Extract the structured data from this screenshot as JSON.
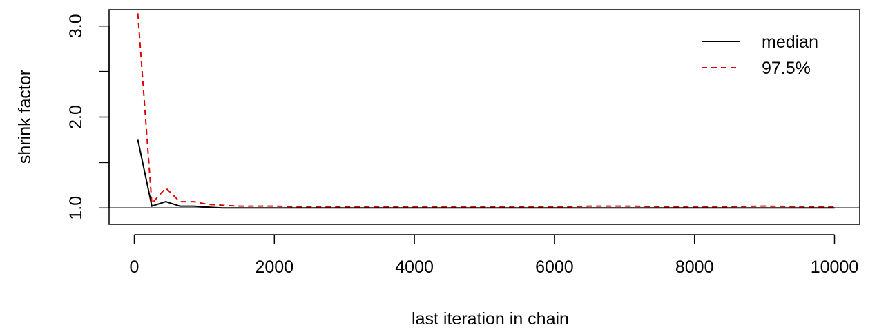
{
  "chart_data": {
    "type": "line",
    "title": "",
    "xlabel": "last iteration in chain",
    "ylabel": "shrink factor",
    "xlim": [
      -360,
      10360
    ],
    "ylim": [
      0.82,
      3.18
    ],
    "xticks": [
      0,
      2000,
      4000,
      6000,
      8000,
      10000
    ],
    "xtick_labels": [
      "0",
      "2000",
      "4000",
      "6000",
      "8000",
      "10000"
    ],
    "yticks": [
      1.0,
      1.5,
      2.0,
      2.5,
      3.0
    ],
    "ytick_labels": [
      "1.0",
      "",
      "2.0",
      "",
      "3.0"
    ],
    "reference_line": 1.0,
    "legend": {
      "position": "top-right",
      "entries": [
        "median",
        "97.5%"
      ]
    },
    "series": [
      {
        "name": "median",
        "color": "#000000",
        "dash": "solid",
        "x": [
          50,
          250,
          450,
          650,
          850,
          1050,
          1250,
          1500,
          2000,
          2500,
          3000,
          4000,
          5000,
          6000,
          7000,
          8000,
          9000,
          10000
        ],
        "y": [
          1.75,
          1.02,
          1.07,
          1.02,
          1.02,
          1.01,
          1.0,
          1.0,
          1.0,
          1.0,
          1.0,
          1.0,
          1.0,
          1.0,
          1.0,
          1.0,
          1.0,
          1.0
        ]
      },
      {
        "name": "97.5%",
        "color": "#df0000",
        "dash": "dashed",
        "x": [
          50,
          250,
          450,
          650,
          850,
          1050,
          1250,
          1500,
          2000,
          2500,
          3000,
          4000,
          5000,
          6000,
          6500,
          7000,
          8000,
          9000,
          10000
        ],
        "y": [
          3.14,
          1.05,
          1.22,
          1.07,
          1.07,
          1.04,
          1.03,
          1.02,
          1.02,
          1.01,
          1.01,
          1.01,
          1.01,
          1.01,
          1.02,
          1.02,
          1.01,
          1.02,
          1.01
        ]
      }
    ]
  }
}
